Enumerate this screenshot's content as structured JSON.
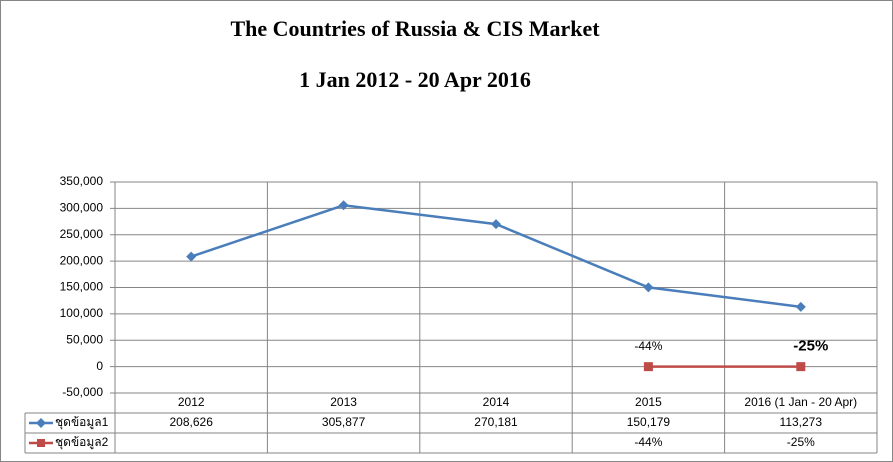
{
  "chart_data": {
    "type": "line",
    "title": "The Countries of Russia & CIS Market",
    "subtitle": "1 Jan 2012 - 20 Apr 2016",
    "categories": [
      "2012",
      "2013",
      "2014",
      "2015",
      "2016 (1 Jan - 20 Apr)"
    ],
    "series": [
      {
        "name": "ชุดข้อมูล1",
        "color": "#4a7ebb",
        "marker": "diamond",
        "values": [
          208626,
          305877,
          270181,
          150179,
          113273
        ],
        "value_labels": [
          "208,626",
          "305,877",
          "270,181",
          "150,179",
          "113,273"
        ]
      },
      {
        "name": "ชุดข้อมูล2",
        "color": "#be4b48",
        "marker": "square",
        "values": [
          null,
          null,
          null,
          -44,
          -25
        ],
        "value_labels": [
          null,
          null,
          null,
          "-44%",
          "-25%"
        ]
      }
    ],
    "ylim": [
      -50000,
      350000
    ],
    "yticks": [
      {
        "value": -50000,
        "label": "-50,000"
      },
      0,
      {
        "value": 50000,
        "label": "50,000"
      },
      {
        "value": 100000,
        "label": "100,000"
      },
      {
        "value": 150000,
        "label": "150,000"
      },
      {
        "value": 200000,
        "label": "200,000"
      },
      {
        "value": 250000,
        "label": "250,000"
      },
      {
        "value": 300000,
        "label": "300,000"
      },
      {
        "value": 350000,
        "label": "350,000"
      }
    ],
    "grid": true,
    "data_table": true
  }
}
